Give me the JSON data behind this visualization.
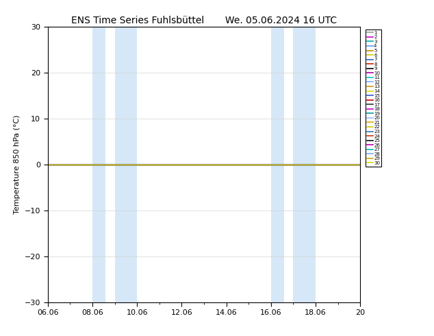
{
  "title": "ENS Time Series Fuhlsbüttel       We. 05.06.2024 16 UTC",
  "ylabel": "Temperature 850 hPa (°C)",
  "xlim": [
    0,
    14
  ],
  "ylim": [
    -30,
    30
  ],
  "yticks": [
    -30,
    -20,
    -10,
    0,
    10,
    20,
    30
  ],
  "xtick_labels": [
    "06.06",
    "08.06",
    "10.06",
    "12.06",
    "14.06",
    "16.06",
    "18.06",
    "20"
  ],
  "xtick_positions": [
    0,
    2,
    4,
    6,
    8,
    10,
    12,
    14
  ],
  "shade_regions": [
    [
      2.0,
      2.58
    ],
    [
      3.0,
      4.0
    ],
    [
      10.0,
      10.58
    ],
    [
      11.0,
      12.0
    ]
  ],
  "shade_color": "#d6e8f7",
  "line_y": 0.0,
  "bg_color": "#ffffff",
  "legend_colors": [
    "#999999",
    "#cc00cc",
    "#00aaaa",
    "#6699ff",
    "#cc8800",
    "#cccc00",
    "#3366cc",
    "#cc2200",
    "#000000",
    "#aa00aa",
    "#00cccc",
    "#88aaff",
    "#cc9900",
    "#dddd00",
    "#3355cc",
    "#cc0000",
    "#333333",
    "#cc00cc",
    "#009999",
    "#99bbff",
    "#ddaa00",
    "#cccc00",
    "#3377bb",
    "#cc3300",
    "#111111",
    "#bb00bb",
    "#00bbbb",
    "#77aaee",
    "#ccaa00",
    "#dddd00"
  ],
  "legend_labels": [
    "1",
    "2",
    "3",
    "4",
    "5",
    "6",
    "7",
    "8",
    "9",
    "10",
    "11",
    "12",
    "13",
    "14",
    "15",
    "16",
    "17",
    "18",
    "19",
    "20",
    "21",
    "22",
    "23",
    "24",
    "25",
    "26",
    "27",
    "28",
    "29",
    "30"
  ],
  "legend_fontsize": 5.0,
  "title_fontsize": 10,
  "axis_fontsize": 8,
  "tick_fontsize": 8
}
